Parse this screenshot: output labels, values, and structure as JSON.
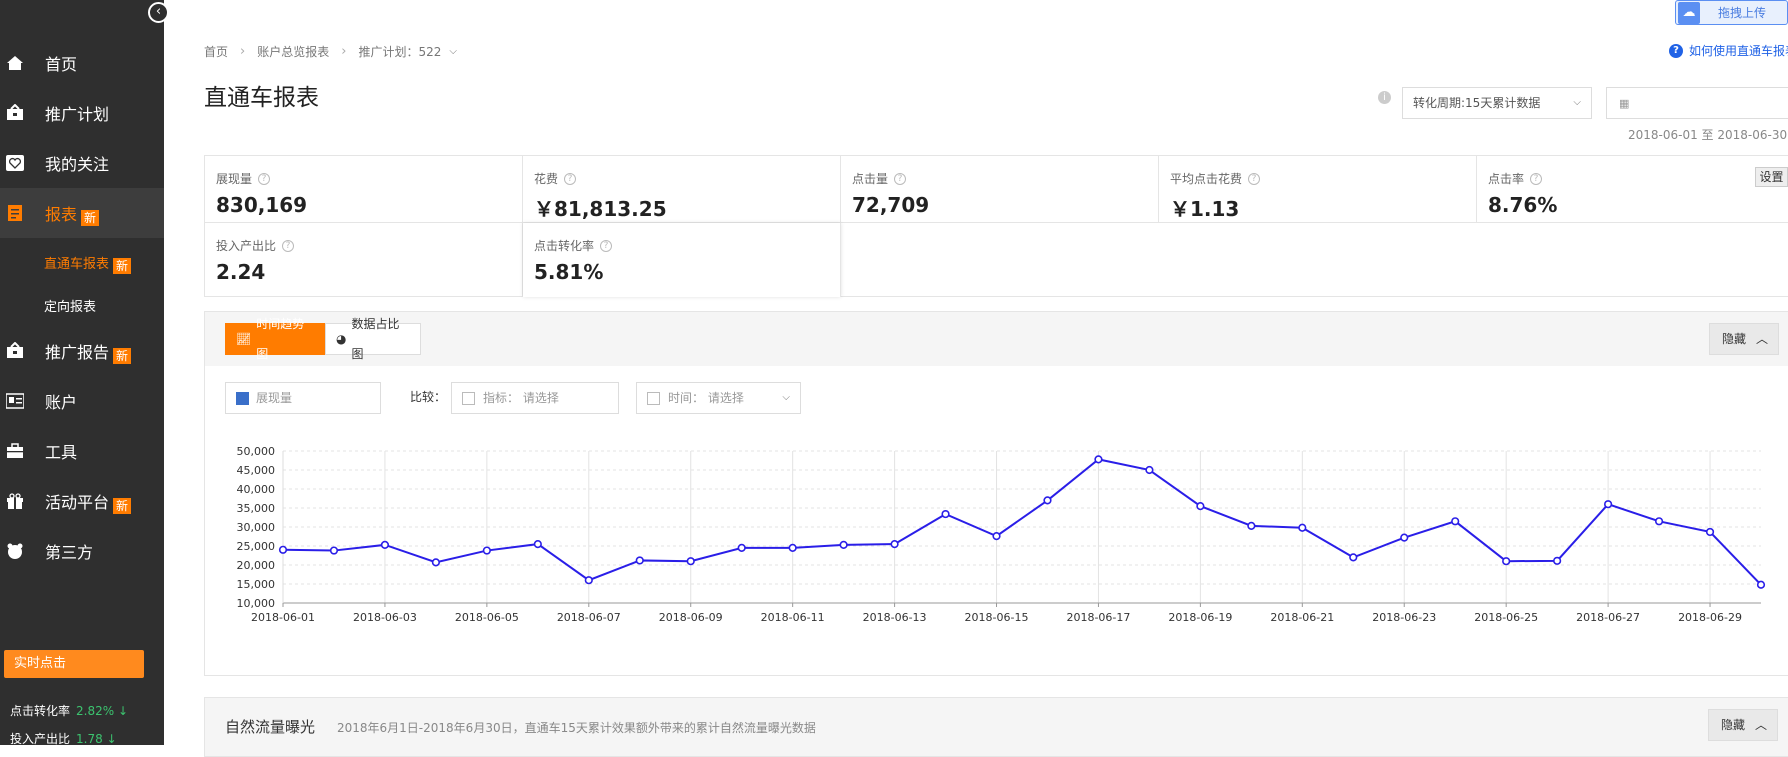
{
  "sidebar": {
    "items": [
      {
        "label": "首页",
        "icon": "home-icon",
        "new": false
      },
      {
        "label": "推广计划",
        "icon": "campaign-icon",
        "new": false
      },
      {
        "label": "我的关注",
        "icon": "heart-icon",
        "new": false
      },
      {
        "label": "报表",
        "icon": "report-icon",
        "new": true
      },
      {
        "label": "推广报告",
        "icon": "promotion-report-icon",
        "new": true
      },
      {
        "label": "账户",
        "icon": "account-icon",
        "new": false
      },
      {
        "label": "工具",
        "icon": "toolbox-icon",
        "new": false
      },
      {
        "label": "活动平台",
        "icon": "gift-icon",
        "new": true
      },
      {
        "label": "第三方",
        "icon": "third-party-icon",
        "new": false
      }
    ],
    "sub_items": [
      {
        "label": "直通车报表",
        "new": true
      },
      {
        "label": "定向报表",
        "new": false
      }
    ],
    "new_badge": "新",
    "realtime": {
      "title": "实时点击",
      "rows": [
        {
          "label": "点击转化率",
          "value": "2.82%",
          "arrow": "↓"
        },
        {
          "label": "投入产出比",
          "value": "1.78",
          "arrow": "↓"
        }
      ]
    }
  },
  "header": {
    "breadcrumb": [
      "首页",
      "账户总览报表",
      "推广计划：522"
    ],
    "title": "直通车报表",
    "upload_label": "拖拽上传",
    "help_label": "如何使用直通车报表",
    "conversion_select": "转化周期:15天累计数据",
    "date_range": "2018-06-01 至 2018-06-30"
  },
  "metrics": [
    {
      "name": "展现量",
      "value": "830,169"
    },
    {
      "name": "花费",
      "value": "￥81,813.25"
    },
    {
      "name": "点击量",
      "value": "72,709"
    },
    {
      "name": "平均点击花费",
      "value": "￥1.13"
    },
    {
      "name": "点击率",
      "value": "8.76%"
    },
    {
      "name": "投入产出比",
      "value": "2.24"
    },
    {
      "name": "点击转化率",
      "value": "5.81%"
    }
  ],
  "settings_label": "设置",
  "chart_panel": {
    "tabs": [
      "时间趋势图",
      "数据占比图"
    ],
    "hide_label": "隐藏",
    "legend_label": "展现量",
    "compare_label": "比较：",
    "indicator_field": "指标： 请选择",
    "time_field": "时间： 请选择"
  },
  "chart_data": {
    "type": "line",
    "x": [
      "2018-06-01",
      "2018-06-02",
      "2018-06-03",
      "2018-06-04",
      "2018-06-05",
      "2018-06-06",
      "2018-06-07",
      "2018-06-08",
      "2018-06-09",
      "2018-06-10",
      "2018-06-11",
      "2018-06-12",
      "2018-06-13",
      "2018-06-14",
      "2018-06-15",
      "2018-06-16",
      "2018-06-17",
      "2018-06-18",
      "2018-06-19",
      "2018-06-20",
      "2018-06-21",
      "2018-06-22",
      "2018-06-23",
      "2018-06-24",
      "2018-06-25",
      "2018-06-26",
      "2018-06-27",
      "2018-06-28",
      "2018-06-29",
      "2018-06-30"
    ],
    "tick_labels": [
      "2018-06-01",
      "2018-06-03",
      "2018-06-05",
      "2018-06-07",
      "2018-06-09",
      "2018-06-11",
      "2018-06-13",
      "2018-06-15",
      "2018-06-17",
      "2018-06-19",
      "2018-06-21",
      "2018-06-23",
      "2018-06-25",
      "2018-06-27",
      "2018-06-29"
    ],
    "series": [
      {
        "name": "展现量",
        "color": "#2a1ee8",
        "values": [
          24000,
          23800,
          25300,
          20700,
          23800,
          25500,
          16000,
          21200,
          21000,
          24500,
          24500,
          25300,
          25500,
          33400,
          27600,
          37000,
          47800,
          45000,
          35500,
          30300,
          29800,
          22000,
          27200,
          31500,
          21000,
          21100,
          36000,
          31500,
          28700,
          14800
        ]
      }
    ],
    "y_ticks": [
      "10,000",
      "15,000",
      "20,000",
      "25,000",
      "30,000",
      "35,000",
      "40,000",
      "45,000",
      "50,000"
    ],
    "ylim": [
      10000,
      50000
    ],
    "grid": true
  },
  "panel2": {
    "title": "自然流量曝光",
    "description": "2018年6月1日-2018年6月30日，直通车15天累计效果额外带来的累计自然流量曝光数据",
    "hide_label": "隐藏"
  }
}
